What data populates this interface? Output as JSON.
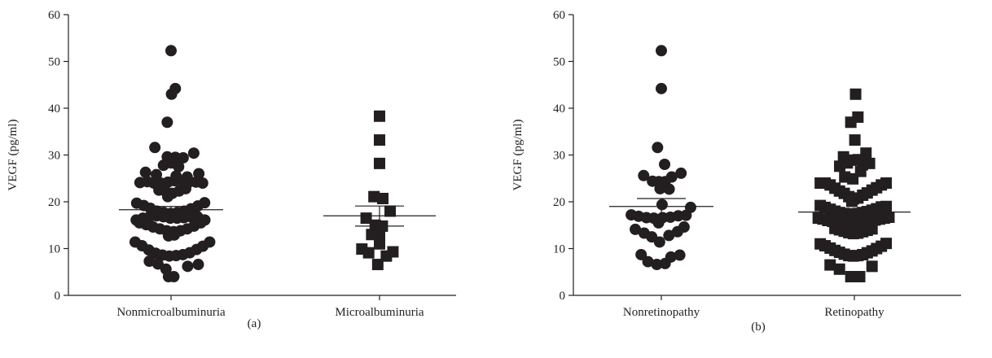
{
  "colors": {
    "ink": "#231f20",
    "background": "#ffffff"
  },
  "chart_data": [
    {
      "type": "scatter",
      "panel_label": "(a)",
      "ylabel": "VEGF (pg/ml)",
      "ylim": [
        0,
        60
      ],
      "yticks": [
        0,
        10,
        20,
        30,
        40,
        50,
        60
      ],
      "categories": [
        "Nonmicroalbuminuria",
        "Microalbuminuria"
      ],
      "groups": [
        {
          "category": "Nonmicroalbuminuria",
          "marker": "circle",
          "mean": 18.3,
          "sem_low": 17.6,
          "sem_high": 19.0,
          "points": [
            {
              "dx": 0.0,
              "y": 52.3
            },
            {
              "dx": 1.7,
              "y": 44.2
            },
            {
              "dx": 0.2,
              "y": 43.0
            },
            {
              "dx": -1.5,
              "y": 37.0
            },
            {
              "dx": -6.4,
              "y": 31.6
            },
            {
              "dx": -1.5,
              "y": 29.6
            },
            {
              "dx": 1.7,
              "y": 29.5
            },
            {
              "dx": 4.8,
              "y": 29.4
            },
            {
              "dx": 9.0,
              "y": 30.4
            },
            {
              "dx": 0.0,
              "y": 28.3
            },
            {
              "dx": -3.0,
              "y": 27.8
            },
            {
              "dx": 3.0,
              "y": 27.5
            },
            {
              "dx": -10.1,
              "y": 26.3
            },
            {
              "dx": -5.8,
              "y": 25.8
            },
            {
              "dx": 2.0,
              "y": 25.5
            },
            {
              "dx": 6.4,
              "y": 25.3
            },
            {
              "dx": 11.0,
              "y": 26.0
            },
            {
              "dx": -12.3,
              "y": 24.1
            },
            {
              "dx": -9.4,
              "y": 24.3
            },
            {
              "dx": -6.8,
              "y": 24.0
            },
            {
              "dx": -4.1,
              "y": 24.0
            },
            {
              "dx": -1.2,
              "y": 24.2
            },
            {
              "dx": 1.5,
              "y": 24.5
            },
            {
              "dx": 4.4,
              "y": 24.5
            },
            {
              "dx": 7.1,
              "y": 24.2
            },
            {
              "dx": 9.9,
              "y": 24.2
            },
            {
              "dx": 12.5,
              "y": 24.0
            },
            {
              "dx": -4.8,
              "y": 22.5
            },
            {
              "dx": -2.1,
              "y": 22.2
            },
            {
              "dx": 0.5,
              "y": 21.8
            },
            {
              "dx": 3.2,
              "y": 22.3
            },
            {
              "dx": 5.8,
              "y": 22.8
            },
            {
              "dx": -1.3,
              "y": 21.1
            },
            {
              "dx": -13.6,
              "y": 19.7
            },
            {
              "dx": -10.8,
              "y": 19.2
            },
            {
              "dx": -8.2,
              "y": 18.6
            },
            {
              "dx": -5.6,
              "y": 18.0
            },
            {
              "dx": -2.9,
              "y": 17.7
            },
            {
              "dx": -0.2,
              "y": 17.5
            },
            {
              "dx": 2.5,
              "y": 17.7
            },
            {
              "dx": 5.2,
              "y": 18.0
            },
            {
              "dx": 7.9,
              "y": 18.5
            },
            {
              "dx": 10.6,
              "y": 19.1
            },
            {
              "dx": 13.3,
              "y": 19.8
            },
            {
              "dx": -13.8,
              "y": 16.1
            },
            {
              "dx": -11.1,
              "y": 16.5
            },
            {
              "dx": -8.4,
              "y": 16.8
            },
            {
              "dx": -5.7,
              "y": 17.0
            },
            {
              "dx": -3.0,
              "y": 16.8
            },
            {
              "dx": -0.3,
              "y": 16.5
            },
            {
              "dx": 2.4,
              "y": 16.5
            },
            {
              "dx": 5.1,
              "y": 16.6
            },
            {
              "dx": 7.8,
              "y": 16.8
            },
            {
              "dx": 10.5,
              "y": 16.8
            },
            {
              "dx": 13.4,
              "y": 16.1
            },
            {
              "dx": -12.5,
              "y": 15.5
            },
            {
              "dx": -9.8,
              "y": 15.1
            },
            {
              "dx": -7.1,
              "y": 14.6
            },
            {
              "dx": -4.4,
              "y": 14.2
            },
            {
              "dx": -1.7,
              "y": 13.8
            },
            {
              "dx": 1.0,
              "y": 13.6
            },
            {
              "dx": 3.7,
              "y": 13.8
            },
            {
              "dx": 6.4,
              "y": 14.2
            },
            {
              "dx": 9.1,
              "y": 14.8
            },
            {
              "dx": 11.8,
              "y": 15.5
            },
            {
              "dx": -1.0,
              "y": 12.7
            },
            {
              "dx": 1.3,
              "y": 12.9
            },
            {
              "dx": -14.2,
              "y": 11.4
            },
            {
              "dx": -11.5,
              "y": 10.6
            },
            {
              "dx": -8.8,
              "y": 9.7
            },
            {
              "dx": -6.1,
              "y": 9.0
            },
            {
              "dx": -3.4,
              "y": 8.6
            },
            {
              "dx": -0.7,
              "y": 8.4
            },
            {
              "dx": 2.0,
              "y": 8.5
            },
            {
              "dx": 4.7,
              "y": 8.7
            },
            {
              "dx": 7.4,
              "y": 9.1
            },
            {
              "dx": 10.1,
              "y": 9.8
            },
            {
              "dx": 12.6,
              "y": 10.5
            },
            {
              "dx": 15.3,
              "y": 11.4
            },
            {
              "dx": -8.6,
              "y": 7.3
            },
            {
              "dx": -5.2,
              "y": 6.7
            },
            {
              "dx": 6.6,
              "y": 6.2
            },
            {
              "dx": 10.8,
              "y": 6.6
            },
            {
              "dx": -2.0,
              "y": 5.6
            },
            {
              "dx": -1.0,
              "y": 4.0
            },
            {
              "dx": 1.1,
              "y": 4.0
            }
          ]
        },
        {
          "category": "Microalbuminuria",
          "marker": "square",
          "mean": 17.0,
          "sem_low": 14.8,
          "sem_high": 19.1,
          "points": [
            {
              "dx": 0.0,
              "y": 38.3
            },
            {
              "dx": 0.0,
              "y": 33.2
            },
            {
              "dx": 0.0,
              "y": 28.2
            },
            {
              "dx": -2.2,
              "y": 21.1
            },
            {
              "dx": 1.3,
              "y": 20.7
            },
            {
              "dx": 4.2,
              "y": 18.0
            },
            {
              "dx": -5.3,
              "y": 16.5
            },
            {
              "dx": -1.7,
              "y": 15.0
            },
            {
              "dx": 1.1,
              "y": 14.8
            },
            {
              "dx": 0.0,
              "y": 13.2
            },
            {
              "dx": -3.1,
              "y": 13.0
            },
            {
              "dx": 0.0,
              "y": 11.0
            },
            {
              "dx": -7.0,
              "y": 9.9
            },
            {
              "dx": -4.3,
              "y": 9.1
            },
            {
              "dx": 5.3,
              "y": 9.3
            },
            {
              "dx": 2.7,
              "y": 8.4
            },
            {
              "dx": -0.7,
              "y": 6.6
            }
          ]
        }
      ]
    },
    {
      "type": "scatter",
      "panel_label": "(b)",
      "ylabel": "VEGF (pg/ml)",
      "ylim": [
        0,
        60
      ],
      "yticks": [
        0,
        10,
        20,
        30,
        40,
        50,
        60
      ],
      "categories": [
        "Nonretinopathy",
        "Retinopathy"
      ],
      "groups": [
        {
          "category": "Nonretinopathy",
          "marker": "circle",
          "mean": 19.0,
          "sem_low": 17.3,
          "sem_high": 20.7,
          "points": [
            {
              "dx": 0.0,
              "y": 52.3
            },
            {
              "dx": 0.0,
              "y": 44.2
            },
            {
              "dx": -1.5,
              "y": 31.6
            },
            {
              "dx": 1.3,
              "y": 28.0
            },
            {
              "dx": -7.0,
              "y": 25.6
            },
            {
              "dx": -3.5,
              "y": 24.4
            },
            {
              "dx": -1.0,
              "y": 24.3
            },
            {
              "dx": 1.5,
              "y": 24.3
            },
            {
              "dx": 4.1,
              "y": 25.3
            },
            {
              "dx": 7.8,
              "y": 26.1
            },
            {
              "dx": -0.5,
              "y": 22.8
            },
            {
              "dx": 3.1,
              "y": 22.7
            },
            {
              "dx": 0.3,
              "y": 19.4
            },
            {
              "dx": -11.9,
              "y": 17.2
            },
            {
              "dx": -9.0,
              "y": 16.9
            },
            {
              "dx": -5.9,
              "y": 16.6
            },
            {
              "dx": -3.0,
              "y": 16.5
            },
            {
              "dx": 0.5,
              "y": 16.6
            },
            {
              "dx": 3.6,
              "y": 16.7
            },
            {
              "dx": 6.7,
              "y": 17.0
            },
            {
              "dx": 9.8,
              "y": 17.1
            },
            {
              "dx": 11.6,
              "y": 18.8
            },
            {
              "dx": -1.1,
              "y": 15.5
            },
            {
              "dx": -10.3,
              "y": 14.1
            },
            {
              "dx": 9.0,
              "y": 14.6
            },
            {
              "dx": -6.8,
              "y": 13.3
            },
            {
              "dx": -3.8,
              "y": 12.5
            },
            {
              "dx": 3.0,
              "y": 12.8
            },
            {
              "dx": 6.4,
              "y": 13.6
            },
            {
              "dx": -0.7,
              "y": 11.4
            },
            {
              "dx": -8.0,
              "y": 8.7
            },
            {
              "dx": 7.3,
              "y": 8.6
            },
            {
              "dx": 3.8,
              "y": 8.2
            },
            {
              "dx": -5.3,
              "y": 7.2
            },
            {
              "dx": -1.8,
              "y": 6.6
            },
            {
              "dx": 1.5,
              "y": 6.8
            }
          ]
        },
        {
          "category": "Retinopathy",
          "marker": "square",
          "mean": 17.8,
          "sem_low": 17.2,
          "sem_high": 18.5,
          "points": [
            {
              "dx": 0.5,
              "y": 43.0
            },
            {
              "dx": 1.4,
              "y": 38.1
            },
            {
              "dx": -1.4,
              "y": 37.0
            },
            {
              "dx": 0.2,
              "y": 33.2
            },
            {
              "dx": -4.3,
              "y": 29.6
            },
            {
              "dx": -1.6,
              "y": 28.9
            },
            {
              "dx": 1.5,
              "y": 29.0
            },
            {
              "dx": 4.6,
              "y": 30.4
            },
            {
              "dx": -5.8,
              "y": 27.6
            },
            {
              "dx": -2.8,
              "y": 28.3
            },
            {
              "dx": 3.2,
              "y": 27.9
            },
            {
              "dx": 6.0,
              "y": 28.2
            },
            {
              "dx": -3.8,
              "y": 25.3
            },
            {
              "dx": -0.6,
              "y": 24.9
            },
            {
              "dx": 2.5,
              "y": 26.5
            },
            {
              "dx": -13.5,
              "y": 24.0
            },
            {
              "dx": -11.6,
              "y": 24.0
            },
            {
              "dx": -9.6,
              "y": 23.6
            },
            {
              "dx": -7.7,
              "y": 22.9
            },
            {
              "dx": -5.9,
              "y": 22.3
            },
            {
              "dx": -4.0,
              "y": 21.8
            },
            {
              "dx": -2.2,
              "y": 21.1
            },
            {
              "dx": -0.4,
              "y": 20.6
            },
            {
              "dx": 1.4,
              "y": 20.8
            },
            {
              "dx": 3.3,
              "y": 21.4
            },
            {
              "dx": 5.1,
              "y": 21.9
            },
            {
              "dx": 7.0,
              "y": 22.5
            },
            {
              "dx": 8.8,
              "y": 23.0
            },
            {
              "dx": 10.7,
              "y": 23.6
            },
            {
              "dx": 12.6,
              "y": 24.0
            },
            {
              "dx": -1.0,
              "y": 20.1
            },
            {
              "dx": -13.5,
              "y": 19.2
            },
            {
              "dx": -11.6,
              "y": 18.8
            },
            {
              "dx": -9.6,
              "y": 18.4
            },
            {
              "dx": -7.7,
              "y": 18.0
            },
            {
              "dx": -5.9,
              "y": 17.7
            },
            {
              "dx": -4.0,
              "y": 17.5
            },
            {
              "dx": -2.2,
              "y": 17.4
            },
            {
              "dx": -0.4,
              "y": 17.4
            },
            {
              "dx": 1.4,
              "y": 17.5
            },
            {
              "dx": 3.3,
              "y": 17.7
            },
            {
              "dx": 5.1,
              "y": 17.9
            },
            {
              "dx": 7.0,
              "y": 18.2
            },
            {
              "dx": 8.8,
              "y": 18.5
            },
            {
              "dx": 10.7,
              "y": 18.9
            },
            {
              "dx": 12.6,
              "y": 19.0
            },
            {
              "dx": -14.3,
              "y": 16.5
            },
            {
              "dx": -12.4,
              "y": 16.3
            },
            {
              "dx": -10.5,
              "y": 16.0
            },
            {
              "dx": -8.6,
              "y": 15.8
            },
            {
              "dx": -6.7,
              "y": 15.6
            },
            {
              "dx": -4.9,
              "y": 15.4
            },
            {
              "dx": -3.0,
              "y": 15.3
            },
            {
              "dx": -1.1,
              "y": 15.2
            },
            {
              "dx": 0.7,
              "y": 15.3
            },
            {
              "dx": 2.6,
              "y": 15.5
            },
            {
              "dx": 4.5,
              "y": 15.7
            },
            {
              "dx": 6.3,
              "y": 15.9
            },
            {
              "dx": 8.2,
              "y": 16.1
            },
            {
              "dx": 10.0,
              "y": 16.3
            },
            {
              "dx": 11.9,
              "y": 16.5
            },
            {
              "dx": 13.7,
              "y": 16.7
            },
            {
              "dx": -7.7,
              "y": 14.3
            },
            {
              "dx": -5.9,
              "y": 14.0
            },
            {
              "dx": -4.0,
              "y": 13.7
            },
            {
              "dx": -2.2,
              "y": 13.4
            },
            {
              "dx": -0.4,
              "y": 13.2
            },
            {
              "dx": 1.4,
              "y": 13.3
            },
            {
              "dx": 3.3,
              "y": 13.6
            },
            {
              "dx": 5.1,
              "y": 13.9
            },
            {
              "dx": 7.0,
              "y": 14.2
            },
            {
              "dx": -13.5,
              "y": 11.0
            },
            {
              "dx": -11.6,
              "y": 10.6
            },
            {
              "dx": -9.6,
              "y": 10.1
            },
            {
              "dx": -7.7,
              "y": 9.6
            },
            {
              "dx": -5.9,
              "y": 9.2
            },
            {
              "dx": -4.0,
              "y": 8.8
            },
            {
              "dx": -2.2,
              "y": 8.5
            },
            {
              "dx": -0.4,
              "y": 8.4
            },
            {
              "dx": 1.4,
              "y": 8.5
            },
            {
              "dx": 3.3,
              "y": 8.7
            },
            {
              "dx": 5.1,
              "y": 9.1
            },
            {
              "dx": 7.0,
              "y": 9.5
            },
            {
              "dx": 8.8,
              "y": 10.0
            },
            {
              "dx": 10.7,
              "y": 10.5
            },
            {
              "dx": 12.6,
              "y": 11.1
            },
            {
              "dx": -9.6,
              "y": 6.5
            },
            {
              "dx": -5.9,
              "y": 5.6
            },
            {
              "dx": 7.0,
              "y": 6.2
            },
            {
              "dx": -1.4,
              "y": 4.0
            },
            {
              "dx": 2.1,
              "y": 4.0
            }
          ]
        }
      ]
    }
  ]
}
